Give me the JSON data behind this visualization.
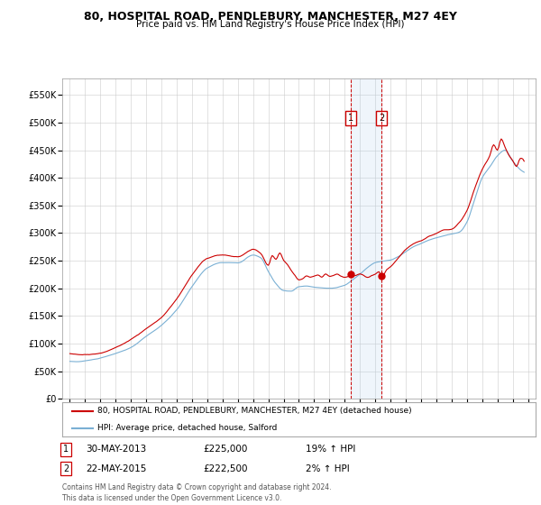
{
  "title": "80, HOSPITAL ROAD, PENDLEBURY, MANCHESTER, M27 4EY",
  "subtitle": "Price paid vs. HM Land Registry's House Price Index (HPI)",
  "legend_line1": "80, HOSPITAL ROAD, PENDLEBURY, MANCHESTER, M27 4EY (detached house)",
  "legend_line2": "HPI: Average price, detached house, Salford",
  "footer": "Contains HM Land Registry data © Crown copyright and database right 2024.\nThis data is licensed under the Open Government Licence v3.0.",
  "sale1_label": "1",
  "sale1_date": "30-MAY-2013",
  "sale1_price": "£225,000",
  "sale1_hpi": "19% ↑ HPI",
  "sale2_label": "2",
  "sale2_date": "22-MAY-2015",
  "sale2_price": "£222,500",
  "sale2_hpi": "2% ↑ HPI",
  "line_color_red": "#cc0000",
  "line_color_blue": "#7ab0d4",
  "sale1_x": 2013.42,
  "sale1_y": 225000,
  "sale2_x": 2015.42,
  "sale2_y": 222500,
  "ylim_min": 0,
  "ylim_max": 580000,
  "xlim_min": 1994.5,
  "xlim_max": 2025.5,
  "yticks": [
    0,
    50000,
    100000,
    150000,
    200000,
    250000,
    300000,
    350000,
    400000,
    450000,
    500000,
    550000
  ],
  "ytick_labels": [
    "£0",
    "£50K",
    "£100K",
    "£150K",
    "£200K",
    "£250K",
    "£300K",
    "£350K",
    "£400K",
    "£450K",
    "£500K",
    "£550K"
  ],
  "xticks": [
    1995,
    1996,
    1997,
    1998,
    1999,
    2000,
    2001,
    2002,
    2003,
    2004,
    2005,
    2006,
    2007,
    2008,
    2009,
    2010,
    2011,
    2012,
    2013,
    2014,
    2015,
    2016,
    2017,
    2018,
    2019,
    2020,
    2021,
    2022,
    2023,
    2024,
    2025
  ],
  "shade_x1": 2013.42,
  "shade_x2": 2015.42,
  "bg_color": "#ffffff",
  "grid_color": "#cccccc"
}
